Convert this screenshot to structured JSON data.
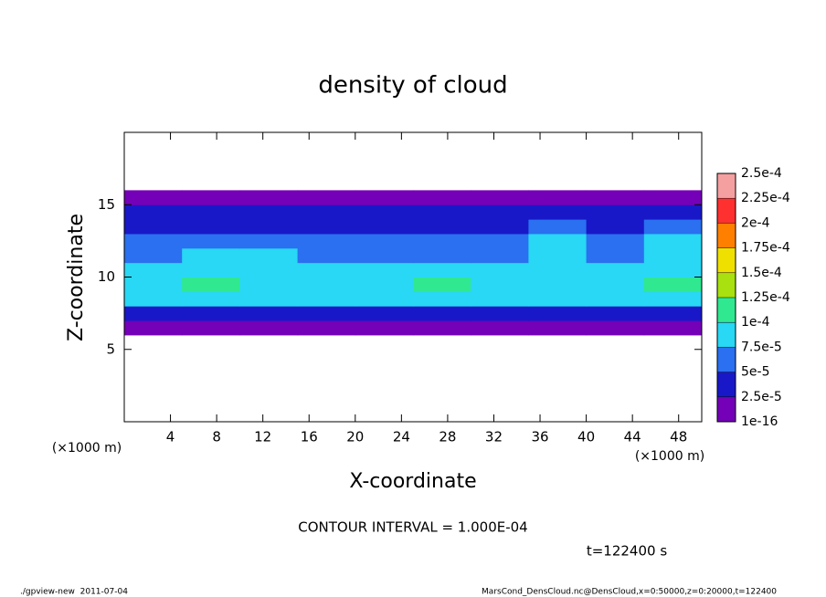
{
  "chart_data": {
    "type": "contour",
    "title": "density of cloud",
    "xlabel": "X-coordinate",
    "ylabel": "Z-coordinate",
    "x_unit": "(×1000 m)",
    "y_unit": "(×1000 m)",
    "contour_note": "CONTOUR INTERVAL = 1.000E-04",
    "time_label": "t=122400 s",
    "footer_left": "./gpview-new  2011-07-04",
    "footer_right": "MarsCond_DensCloud.nc@DensCloud,x=0:50000,z=0:20000,t=122400",
    "xlim": [
      0,
      50
    ],
    "ylim": [
      0,
      20
    ],
    "xticks": [
      4,
      8,
      12,
      16,
      20,
      24,
      28,
      32,
      36,
      40,
      44,
      48
    ],
    "yticks": [
      5,
      10,
      15
    ],
    "x": [
      2.5,
      7.5,
      12.5,
      17.5,
      22.5,
      27.5,
      32.5,
      37.5,
      42.5,
      47.5
    ],
    "z": [
      6.5,
      7.5,
      8.5,
      9.5,
      10.5,
      11.5,
      12.5,
      13.5,
      14.5,
      15.5,
      16.5
    ],
    "values": [
      [
        1e-05,
        1e-05,
        1e-05,
        1e-05,
        1e-05,
        1e-05,
        1e-05,
        1e-05,
        1e-05,
        1e-05
      ],
      [
        3e-05,
        3e-05,
        3e-05,
        3e-05,
        3e-05,
        3e-05,
        3e-05,
        3e-05,
        3e-05,
        3e-05
      ],
      [
        8e-05,
        8e-05,
        8e-05,
        8e-05,
        8e-05,
        8e-05,
        8e-05,
        8e-05,
        8e-05,
        8e-05
      ],
      [
        8e-05,
        0.000105,
        8e-05,
        8e-05,
        9e-05,
        0.000105,
        9e-05,
        8e-05,
        9e-05,
        0.000105
      ],
      [
        7.8e-05,
        7.8e-05,
        7.8e-05,
        7.8e-05,
        7.8e-05,
        7.8e-05,
        7.8e-05,
        7.8e-05,
        7.8e-05,
        7.8e-05
      ],
      [
        6e-05,
        7.8e-05,
        7.8e-05,
        6e-05,
        6e-05,
        6e-05,
        6e-05,
        7.8e-05,
        6e-05,
        7.8e-05
      ],
      [
        6e-05,
        6e-05,
        5e-05,
        5e-05,
        5e-05,
        5e-05,
        6e-05,
        7.8e-05,
        5e-05,
        7.8e-05
      ],
      [
        4e-05,
        4e-05,
        4e-05,
        4e-05,
        4e-05,
        4e-05,
        4e-05,
        6e-05,
        4e-05,
        6e-05
      ],
      [
        3e-05,
        3e-05,
        3e-05,
        3e-05,
        3e-05,
        3e-05,
        3e-05,
        3e-05,
        3e-05,
        3e-05
      ],
      [
        1e-05,
        1e-05,
        1e-05,
        1e-05,
        1e-05,
        1e-05,
        1e-05,
        1e-05,
        1e-05,
        1e-05
      ],
      [
        null,
        null,
        null,
        null,
        null,
        null,
        null,
        null,
        null,
        null
      ]
    ],
    "levels": [
      {
        "value": 1e-16,
        "label": "1e-16"
      },
      {
        "value": 2.5e-05,
        "label": "2.5e-5"
      },
      {
        "value": 5e-05,
        "label": "5e-5"
      },
      {
        "value": 7.5e-05,
        "label": "7.5e-5"
      },
      {
        "value": 0.0001,
        "label": "1e-4"
      },
      {
        "value": 0.000125,
        "label": "1.25e-4"
      },
      {
        "value": 0.00015,
        "label": "1.5e-4"
      },
      {
        "value": 0.000175,
        "label": "1.75e-4"
      },
      {
        "value": 0.0002,
        "label": "2e-4"
      },
      {
        "value": 0.000225,
        "label": "2.25e-4"
      },
      {
        "value": 0.00025,
        "label": "2.5e-4"
      }
    ],
    "colors": [
      "#7400b8",
      "#1818c8",
      "#2a70f0",
      "#28d8f4",
      "#30e890",
      "#a8e010",
      "#f0e000",
      "#ff8000",
      "#ff3030",
      "#f4a0a0"
    ]
  }
}
